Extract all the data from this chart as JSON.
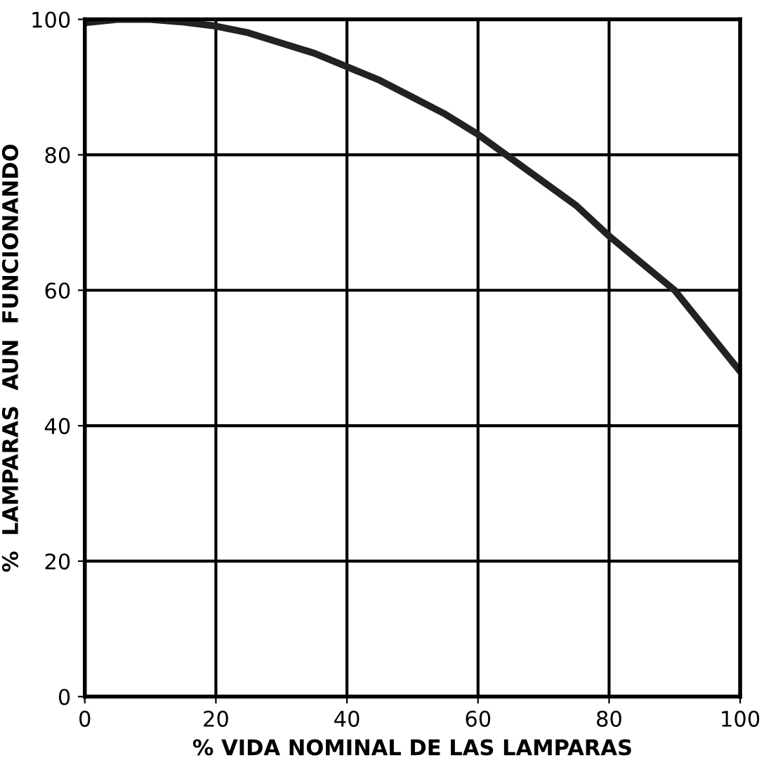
{
  "chart_data": {
    "type": "line",
    "xlabel": "% VIDA NOMINAL DE LAS LAMPARAS",
    "ylabel": "%  LAMPARAS  AUN  FUNCIONANDO",
    "x": [
      0,
      5,
      10,
      15,
      20,
      25,
      30,
      35,
      40,
      45,
      50,
      55,
      60,
      65,
      70,
      75,
      80,
      85,
      90,
      95,
      100
    ],
    "series": [
      {
        "color": "#222222",
        "values": [
          99.5,
          100,
          100,
          99.6,
          99,
          98,
          96.5,
          95,
          93,
          91,
          88.5,
          86,
          83,
          79.5,
          76,
          72.5,
          68,
          64,
          60,
          54,
          48
        ]
      }
    ],
    "xlim": [
      0,
      100
    ],
    "ylim": [
      0,
      100
    ],
    "xticks": [
      0,
      20,
      40,
      60,
      80,
      100
    ],
    "yticks": [
      0,
      20,
      40,
      60,
      80,
      100
    ],
    "grid": true,
    "legend": false,
    "marker": "none",
    "line_style": "solid"
  }
}
